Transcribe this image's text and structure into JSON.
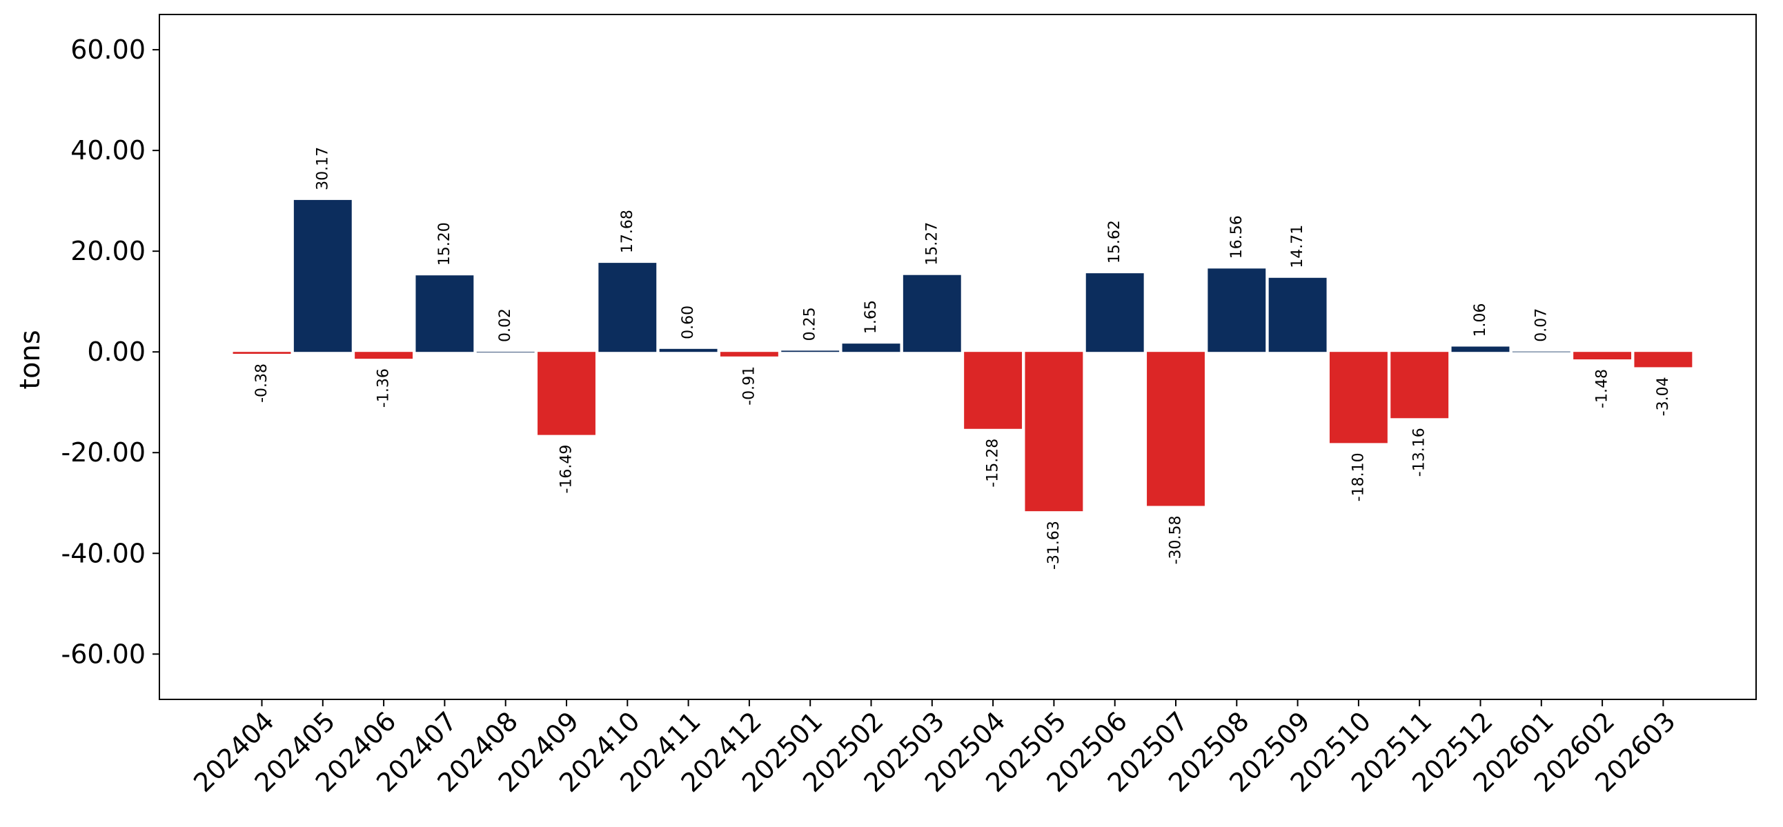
{
  "chart_data": {
    "type": "bar",
    "title": "",
    "xlabel": "",
    "ylabel": "tons",
    "ylim": [
      -69,
      67
    ],
    "yticks": [
      -60,
      -40,
      -20,
      0,
      20,
      40,
      60
    ],
    "ytick_labels": [
      "-60.00",
      "-40.00",
      "-20.00",
      "0.00",
      "20.00",
      "40.00",
      "60.00"
    ],
    "grid": false,
    "legend": "none",
    "colors": {
      "positive": "#0c2d5d",
      "negative": "#dc2626"
    },
    "categories": [
      "202404",
      "202405",
      "202406",
      "202407",
      "202408",
      "202409",
      "202410",
      "202411",
      "202412",
      "202501",
      "202502",
      "202503",
      "202504",
      "202505",
      "202506",
      "202507",
      "202508",
      "202509",
      "202510",
      "202511",
      "202512",
      "202601",
      "202602",
      "202603"
    ],
    "values": [
      -0.38,
      30.17,
      -1.36,
      15.2,
      0.02,
      -16.49,
      17.68,
      0.6,
      -0.91,
      0.25,
      1.65,
      15.27,
      -15.28,
      -31.63,
      15.62,
      -30.58,
      16.56,
      14.71,
      -18.1,
      -13.16,
      1.06,
      0.07,
      -1.48,
      -3.04
    ],
    "value_labels": [
      "-0.38",
      "30.17",
      "-1.36",
      "15.20",
      "0.02",
      "-16.49",
      "17.68",
      "0.60",
      "-0.91",
      "0.25",
      "1.65",
      "15.27",
      "-15.28",
      "-31.63",
      "15.62",
      "-30.58",
      "16.56",
      "14.71",
      "-18.10",
      "-13.16",
      "1.06",
      "0.07",
      "-1.48",
      "-3.04"
    ]
  }
}
